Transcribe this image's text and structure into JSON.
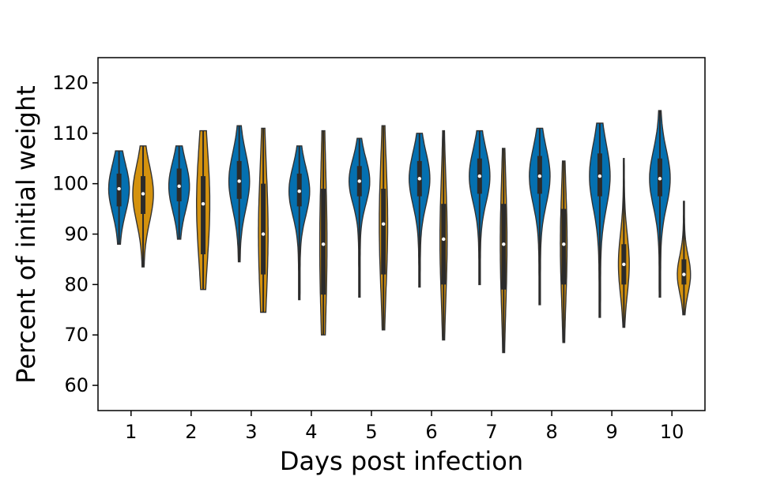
{
  "chart_data": {
    "type": "violin",
    "title": "",
    "xlabel": "Days post infection",
    "ylabel": "Percent of initial weight",
    "ylim": [
      55,
      125
    ],
    "yticks": [
      60,
      70,
      80,
      90,
      100,
      110,
      120
    ],
    "categories": [
      "1",
      "2",
      "3",
      "4",
      "5",
      "6",
      "7",
      "8",
      "9",
      "10"
    ],
    "grid": false,
    "legend": "none",
    "series": [
      {
        "color": "#0570b0",
        "groups": [
          {
            "min": 88.0,
            "max": 106.5,
            "median": 99.0,
            "q1": 95.5,
            "q3": 102.0,
            "widthScale": 0.86
          },
          {
            "min": 89.0,
            "max": 107.5,
            "median": 99.5,
            "q1": 96.5,
            "q3": 103.0,
            "widthScale": 0.86
          },
          {
            "min": 84.5,
            "max": 111.5,
            "median": 100.5,
            "q1": 97.0,
            "q3": 104.5,
            "widthScale": 0.86
          },
          {
            "min": 77.0,
            "max": 107.5,
            "median": 98.5,
            "q1": 95.5,
            "q3": 102.0,
            "widthScale": 0.86
          },
          {
            "min": 77.5,
            "max": 109.0,
            "median": 100.5,
            "q1": 97.5,
            "q3": 103.5,
            "widthScale": 0.86
          },
          {
            "min": 79.5,
            "max": 110.0,
            "median": 101.0,
            "q1": 97.5,
            "q3": 104.5,
            "widthScale": 0.86
          },
          {
            "min": 80.0,
            "max": 110.5,
            "median": 101.5,
            "q1": 98.0,
            "q3": 105.0,
            "widthScale": 0.86
          },
          {
            "min": 76.0,
            "max": 111.0,
            "median": 101.5,
            "q1": 98.0,
            "q3": 105.5,
            "widthScale": 0.86
          },
          {
            "min": 73.5,
            "max": 112.0,
            "median": 101.5,
            "q1": 97.5,
            "q3": 106.0,
            "widthScale": 0.86
          },
          {
            "min": 77.5,
            "max": 114.5,
            "median": 101.0,
            "q1": 97.5,
            "q3": 105.0,
            "widthScale": 0.86
          }
        ]
      },
      {
        "color": "#d4920e",
        "groups": [
          {
            "min": 83.5,
            "max": 107.5,
            "median": 98.0,
            "q1": 94.0,
            "q3": 101.5,
            "widthScale": 0.86
          },
          {
            "min": 79.0,
            "max": 110.5,
            "median": 96.0,
            "q1": 86.0,
            "q3": 101.5,
            "widthScale": 0.55
          },
          {
            "min": 74.5,
            "max": 111.0,
            "median": 90.0,
            "q1": 82.0,
            "q3": 100.0,
            "widthScale": 0.4
          },
          {
            "min": 70.0,
            "max": 110.5,
            "median": 88.0,
            "q1": 78.0,
            "q3": 99.0,
            "widthScale": 0.3
          },
          {
            "min": 71.0,
            "max": 111.5,
            "median": 92.0,
            "q1": 82.0,
            "q3": 99.0,
            "widthScale": 0.35
          },
          {
            "min": 69.0,
            "max": 110.5,
            "median": 89.0,
            "q1": 80.0,
            "q3": 96.0,
            "widthScale": 0.3
          },
          {
            "min": 66.5,
            "max": 107.0,
            "median": 88.0,
            "q1": 79.0,
            "q3": 96.0,
            "widthScale": 0.28
          },
          {
            "min": 68.5,
            "max": 104.5,
            "median": 88.0,
            "q1": 80.0,
            "q3": 95.0,
            "widthScale": 0.28
          },
          {
            "min": 71.5,
            "max": 105.0,
            "median": 84.0,
            "q1": 80.0,
            "q3": 88.0,
            "widthScale": 0.45
          },
          {
            "min": 74.0,
            "max": 96.5,
            "median": 82.0,
            "q1": 80.0,
            "q3": 85.0,
            "widthScale": 0.55
          }
        ]
      }
    ]
  }
}
